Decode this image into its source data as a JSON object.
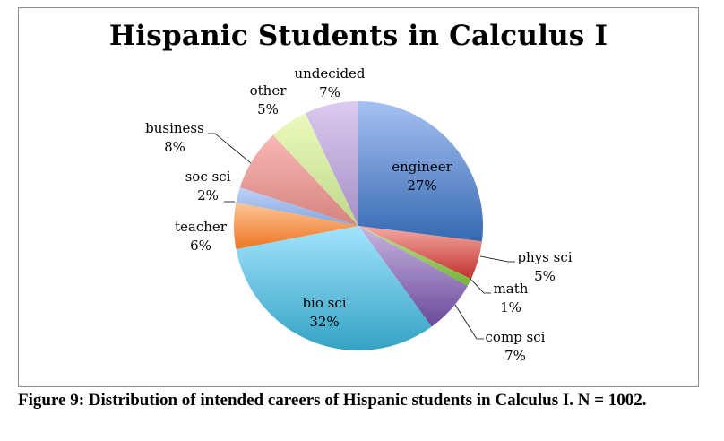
{
  "chart_data": {
    "type": "pie",
    "title": "Hispanic Students in Calculus I",
    "unit": "%",
    "slices": [
      {
        "label": "engineer",
        "value": 27,
        "value_label": "27%",
        "colors": [
          "#a6c0f2",
          "#3569b2"
        ]
      },
      {
        "label": "phys sci",
        "value": 5,
        "value_label": "5%",
        "colors": [
          "#f6aaa4",
          "#c0302c"
        ]
      },
      {
        "label": "math",
        "value": 1,
        "value_label": "1%",
        "colors": [
          "#bfe492",
          "#76b236"
        ]
      },
      {
        "label": "comp sci",
        "value": 7,
        "value_label": "7%",
        "colors": [
          "#c8b4e0",
          "#684a9a"
        ]
      },
      {
        "label": "bio sci",
        "value": 32,
        "value_label": "32%",
        "colors": [
          "#a2e4fc",
          "#34a2c4"
        ]
      },
      {
        "label": "teacher",
        "value": 6,
        "value_label": "6%",
        "colors": [
          "#fdc496",
          "#ee7622"
        ]
      },
      {
        "label": "soc sci",
        "value": 2,
        "value_label": "2%",
        "colors": [
          "#bcd2f6",
          "#86a6de"
        ]
      },
      {
        "label": "business",
        "value": 8,
        "value_label": "8%",
        "colors": [
          "#f8b8b6",
          "#d6827e"
        ]
      },
      {
        "label": "other",
        "value": 5,
        "value_label": "5%",
        "colors": [
          "#ecfabe",
          "#bcd88a"
        ]
      },
      {
        "label": "undecided",
        "value": 7,
        "value_label": "7%",
        "colors": [
          "#dccaf0",
          "#a68ec6"
        ]
      }
    ],
    "start_angle": "12 o'clock",
    "direction": "clockwise",
    "legend": "none",
    "data_labels": "category and percentage"
  },
  "caption": "Figure 9: Distribution of intended careers of Hispanic students in Calculus I. N = 1002."
}
